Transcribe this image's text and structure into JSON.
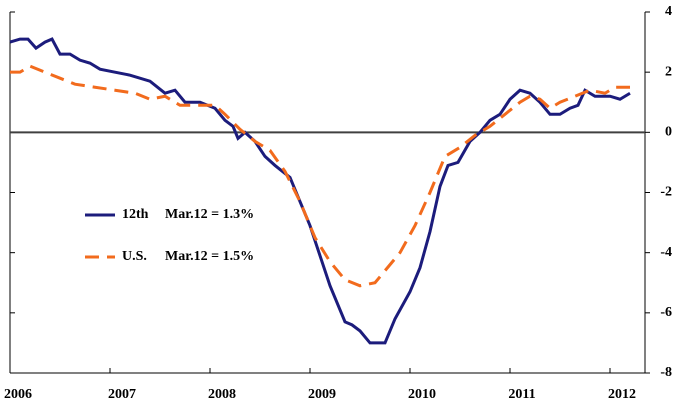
{
  "chart_data": {
    "type": "line",
    "xlim": [
      2006,
      2012.35
    ],
    "xticks": [
      2006,
      2007,
      2008,
      2009,
      2010,
      2011,
      2012
    ],
    "ylim": [
      -8,
      4
    ],
    "yticks": [
      4,
      2,
      0,
      -2,
      -4,
      -6,
      -8
    ],
    "zero_line": true,
    "series": [
      {
        "name": "12th",
        "note": "Mar.12 = 1.3%",
        "color": "#1c1c7c",
        "dash": false,
        "x": [
          2006,
          2006.1,
          2006.18,
          2006.26,
          2006.35,
          2006.42,
          2006.5,
          2006.6,
          2006.7,
          2006.8,
          2006.9,
          2007.05,
          2007.2,
          2007.4,
          2007.55,
          2007.65,
          2007.75,
          2007.9,
          2008.05,
          2008.15,
          2008.23,
          2008.28,
          2008.35,
          2008.45,
          2008.55,
          2008.65,
          2008.8,
          2008.9,
          2009,
          2009.1,
          2009.2,
          2009.35,
          2009.42,
          2009.5,
          2009.6,
          2009.75,
          2009.85,
          2010,
          2010.1,
          2010.2,
          2010.3,
          2010.38,
          2010.48,
          2010.6,
          2010.7,
          2010.8,
          2010.9,
          2011,
          2011.1,
          2011.2,
          2011.3,
          2011.4,
          2011.5,
          2011.6,
          2011.68,
          2011.75,
          2011.85,
          2012,
          2012.1,
          2012.2
        ],
        "values": [
          3.0,
          3.1,
          3.1,
          2.8,
          3.0,
          3.1,
          2.6,
          2.6,
          2.4,
          2.3,
          2.1,
          2.0,
          1.9,
          1.7,
          1.3,
          1.4,
          1.0,
          1.0,
          0.8,
          0.4,
          0.2,
          -0.2,
          0.0,
          -0.3,
          -0.8,
          -1.1,
          -1.5,
          -2.3,
          -3.1,
          -4.1,
          -5.1,
          -6.3,
          -6.4,
          -6.6,
          -7.0,
          -7.0,
          -6.2,
          -5.3,
          -4.5,
          -3.3,
          -1.8,
          -1.1,
          -1.0,
          -0.3,
          0.0,
          0.4,
          0.6,
          1.1,
          1.4,
          1.3,
          1.0,
          0.6,
          0.6,
          0.8,
          0.9,
          1.4,
          1.2,
          1.2,
          1.1,
          1.3
        ]
      },
      {
        "name": "U.S.",
        "note": "Mar.12 = 1.5%",
        "color": "#f26b1d",
        "dash": true,
        "x": [
          2006,
          2006.1,
          2006.2,
          2006.35,
          2006.5,
          2006.65,
          2006.85,
          2007.05,
          2007.25,
          2007.4,
          2007.55,
          2007.7,
          2007.85,
          2008.05,
          2008.15,
          2008.3,
          2008.45,
          2008.6,
          2008.75,
          2008.9,
          2009.05,
          2009.2,
          2009.35,
          2009.5,
          2009.65,
          2009.75,
          2009.9,
          2010.05,
          2010.2,
          2010.35,
          2010.5,
          2010.65,
          2010.8,
          2010.95,
          2011.1,
          2011.2,
          2011.3,
          2011.4,
          2011.5,
          2011.65,
          2011.8,
          2011.95,
          2012.05,
          2012.2
        ],
        "values": [
          2.0,
          2.0,
          2.2,
          2.0,
          1.8,
          1.6,
          1.5,
          1.4,
          1.3,
          1.1,
          1.2,
          0.9,
          0.9,
          0.9,
          0.6,
          0.1,
          -0.3,
          -0.6,
          -1.3,
          -2.3,
          -3.5,
          -4.3,
          -4.9,
          -5.1,
          -5.0,
          -4.6,
          -4.0,
          -3.1,
          -2.0,
          -0.8,
          -0.5,
          -0.1,
          0.2,
          0.6,
          1.0,
          1.2,
          1.1,
          0.8,
          1.0,
          1.2,
          1.4,
          1.3,
          1.5,
          1.5
        ]
      }
    ]
  }
}
